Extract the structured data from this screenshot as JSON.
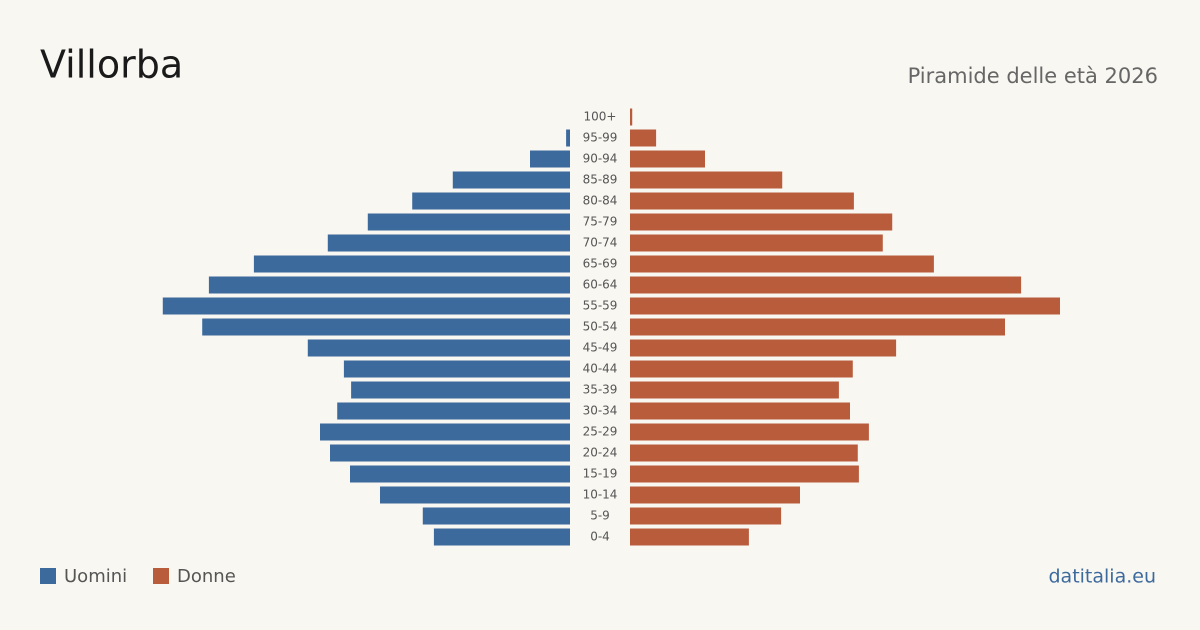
{
  "chart_data": {
    "type": "pyramid",
    "title": "Villorba",
    "subtitle": "Piramide delle età 2026",
    "source": "datitalia.eu",
    "categories": [
      "100+",
      "95-99",
      "90-94",
      "85-89",
      "80-84",
      "75-79",
      "70-74",
      "65-69",
      "60-64",
      "55-59",
      "50-54",
      "45-49",
      "40-44",
      "35-39",
      "30-34",
      "25-29",
      "20-24",
      "15-19",
      "10-14",
      "5-9",
      "0-4"
    ],
    "series": [
      {
        "name": "Uomini",
        "color": "#3d6a9c",
        "values": [
          0,
          7,
          72,
          211,
          284,
          364,
          436,
          569,
          650,
          733,
          662,
          472,
          407,
          394,
          419,
          450,
          432,
          396,
          342,
          265,
          245
        ]
      },
      {
        "name": "Donne",
        "color": "#b85c3c",
        "values": [
          4,
          47,
          135,
          274,
          403,
          472,
          455,
          547,
          704,
          774,
          675,
          479,
          401,
          376,
          396,
          430,
          410,
          412,
          306,
          272,
          214
        ]
      }
    ]
  }
}
